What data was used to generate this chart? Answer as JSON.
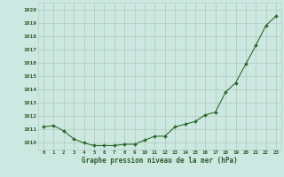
{
  "hours": [
    0,
    1,
    2,
    3,
    4,
    5,
    6,
    7,
    8,
    9,
    10,
    11,
    12,
    13,
    14,
    15,
    16,
    17,
    18,
    19,
    20,
    21,
    22,
    23
  ],
  "pressure": [
    1011.2,
    1011.3,
    1010.9,
    1010.3,
    1010.0,
    1009.8,
    1009.8,
    1009.8,
    1009.9,
    1009.9,
    1010.2,
    1010.5,
    1010.5,
    1011.2,
    1011.4,
    1011.6,
    1012.1,
    1012.3,
    1013.8,
    1014.5,
    1015.9,
    1017.3,
    1018.8,
    1019.5
  ],
  "ylim": [
    1009.5,
    1020.5
  ],
  "yticks": [
    1010,
    1011,
    1012,
    1013,
    1014,
    1015,
    1016,
    1017,
    1018,
    1019,
    1020
  ],
  "xlabel": "Graphe pression niveau de la mer (hPa)",
  "line_color": "#2d6a2d",
  "marker_color": "#2d6a2d",
  "bg_color": "#cce8e0",
  "grid_color": "#b0c8c0",
  "tick_label_color": "#2d5a2d",
  "xlabel_color": "#2d5a2d"
}
